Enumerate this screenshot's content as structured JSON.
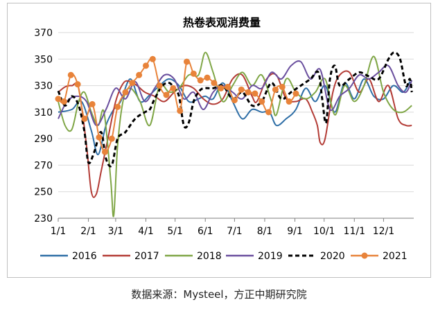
{
  "source_note": "数据来源：Mysteel，方正中期研究院",
  "chart_data": {
    "type": "line",
    "title": "热卷表观消费量",
    "xlabel": "",
    "ylabel": "",
    "xlim": [
      1,
      366
    ],
    "ylim": [
      230,
      370
    ],
    "yticks": [
      230,
      250,
      270,
      290,
      310,
      330,
      350,
      370
    ],
    "xticks": [
      {
        "label": "1/1",
        "day": 1
      },
      {
        "label": "2/1",
        "day": 32
      },
      {
        "label": "3/1",
        "day": 60
      },
      {
        "label": "4/1",
        "day": 91
      },
      {
        "label": "5/1",
        "day": 121
      },
      {
        "label": "6/1",
        "day": 152
      },
      {
        "label": "7/1",
        "day": 182
      },
      {
        "label": "8/1",
        "day": 213
      },
      {
        "label": "9/1",
        "day": 244
      },
      {
        "label": "10/1",
        "day": 274
      },
      {
        "label": "11/1",
        "day": 305
      },
      {
        "label": "12/1",
        "day": 335
      }
    ],
    "grid": "horizontal",
    "legend": "bottom",
    "series": [
      {
        "name": "2016",
        "color": "#2e6ea6",
        "style": "solid",
        "markers": false,
        "x": [
          1,
          15,
          25,
          35,
          42,
          50,
          58,
          65,
          75,
          85,
          95,
          105,
          115,
          125,
          135,
          145,
          152,
          160,
          170,
          180,
          190,
          200,
          210,
          218,
          225,
          235,
          245,
          255,
          265,
          275,
          285,
          295,
          305,
          315,
          325,
          335,
          345,
          355,
          362
        ],
        "y": [
          310,
          312,
          318,
          296,
          278,
          300,
          312,
          318,
          335,
          318,
          323,
          330,
          335,
          330,
          318,
          320,
          322,
          320,
          332,
          318,
          305,
          312,
          310,
          310,
          300,
          305,
          312,
          328,
          318,
          330,
          310,
          332,
          320,
          335,
          322,
          320,
          330,
          325,
          333
        ]
      },
      {
        "name": "2017",
        "color": "#b33b35",
        "style": "solid",
        "markers": false,
        "x": [
          1,
          8,
          15,
          22,
          30,
          35,
          40,
          45,
          52,
          60,
          68,
          75,
          82,
          90,
          100,
          110,
          120,
          130,
          140,
          150,
          160,
          170,
          180,
          190,
          200,
          205,
          215,
          225,
          235,
          245,
          255,
          262,
          267,
          270,
          275,
          283,
          290,
          300,
          310,
          320,
          330,
          340,
          350,
          358,
          364
        ],
        "y": [
          325,
          329,
          330,
          328,
          285,
          250,
          248,
          265,
          290,
          318,
          332,
          333,
          330,
          325,
          322,
          318,
          325,
          330,
          328,
          320,
          316,
          320,
          335,
          338,
          322,
          318,
          335,
          338,
          320,
          318,
          320,
          310,
          300,
          287,
          290,
          325,
          338,
          340,
          325,
          335,
          318,
          330,
          305,
          300,
          300
        ]
      },
      {
        "name": "2018",
        "color": "#7fa646",
        "style": "solid",
        "markers": false,
        "x": [
          1,
          8,
          15,
          22,
          28,
          35,
          42,
          48,
          55,
          58,
          62,
          68,
          75,
          85,
          95,
          105,
          115,
          125,
          135,
          145,
          152,
          160,
          170,
          180,
          190,
          200,
          210,
          220,
          225,
          235,
          245,
          255,
          265,
          275,
          285,
          295,
          305,
          315,
          325,
          335,
          345,
          355,
          364
        ],
        "y": [
          318,
          300,
          297,
          318,
          325,
          310,
          300,
          310,
          258,
          232,
          285,
          320,
          328,
          318,
          300,
          330,
          325,
          328,
          338,
          338,
          355,
          340,
          318,
          330,
          340,
          330,
          338,
          318,
          308,
          335,
          325,
          320,
          325,
          335,
          308,
          330,
          318,
          330,
          352,
          325,
          312,
          310,
          315
        ]
      },
      {
        "name": "2019",
        "color": "#6a4f9e",
        "style": "solid",
        "markers": false,
        "x": [
          1,
          10,
          20,
          30,
          40,
          50,
          60,
          70,
          80,
          90,
          100,
          110,
          120,
          130,
          140,
          150,
          160,
          170,
          180,
          190,
          200,
          210,
          220,
          230,
          240,
          250,
          260,
          270,
          280,
          290,
          300,
          310,
          320,
          330,
          340,
          350,
          358,
          364
        ],
        "y": [
          305,
          318,
          322,
          318,
          300,
          312,
          328,
          320,
          333,
          318,
          328,
          338,
          335,
          320,
          325,
          312,
          325,
          330,
          325,
          320,
          330,
          328,
          340,
          335,
          345,
          348,
          335,
          342,
          312,
          322,
          328,
          338,
          335,
          340,
          345,
          330,
          325,
          334
        ]
      },
      {
        "name": "2020",
        "color": "#000000",
        "style": "dashed",
        "markers": false,
        "x": [
          1,
          8,
          15,
          22,
          28,
          32,
          38,
          45,
          50,
          56,
          62,
          70,
          80,
          90,
          95,
          100,
          108,
          115,
          120,
          125,
          130,
          135,
          140,
          145,
          150,
          160,
          170,
          180,
          190,
          200,
          210,
          220,
          230,
          240,
          250,
          260,
          268,
          272,
          276,
          280,
          285,
          290,
          300,
          310,
          320,
          330,
          340,
          346,
          352,
          358,
          362,
          364
        ],
        "y": [
          326,
          315,
          322,
          315,
          295,
          272,
          280,
          295,
          275,
          270,
          290,
          295,
          305,
          310,
          312,
          320,
          330,
          332,
          328,
          322,
          300,
          302,
          318,
          325,
          328,
          328,
          330,
          320,
          325,
          315,
          318,
          332,
          320,
          325,
          330,
          335,
          340,
          320,
          302,
          335,
          345,
          330,
          335,
          340,
          337,
          335,
          350,
          355,
          350,
          330,
          335,
          325
        ]
      },
      {
        "name": "2021",
        "color": "#e8833a",
        "style": "solid",
        "markers": true,
        "x": [
          1,
          7,
          14,
          21,
          28,
          36,
          43,
          49,
          56,
          62,
          70,
          77,
          84,
          91,
          98,
          105,
          112,
          119,
          126,
          133,
          140,
          147,
          154,
          161,
          168,
          175,
          182,
          189,
          196,
          203,
          210,
          217,
          224,
          231,
          238,
          245
        ],
        "y": [
          320,
          318,
          338,
          331,
          305,
          316,
          291,
          280,
          290,
          314,
          325,
          332,
          338,
          345,
          350,
          330,
          323,
          328,
          311,
          348,
          339,
          334,
          336,
          332,
          328,
          329,
          319,
          327,
          325,
          324,
          318,
          310,
          327,
          329,
          318,
          324
        ]
      }
    ]
  }
}
